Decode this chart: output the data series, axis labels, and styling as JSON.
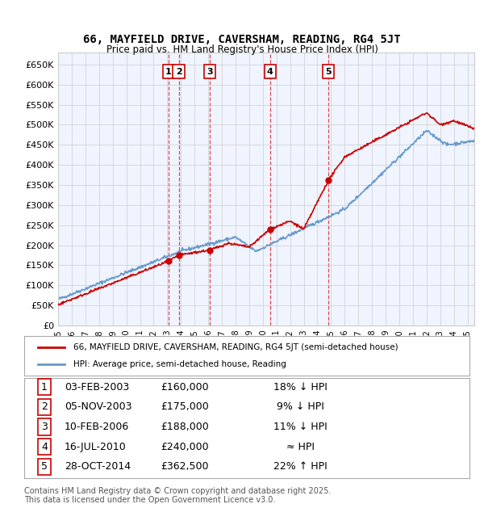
{
  "title": "66, MAYFIELD DRIVE, CAVERSHAM, READING, RG4 5JT",
  "subtitle": "Price paid vs. HM Land Registry's House Price Index (HPI)",
  "ylabel_prefix": "£",
  "xlim_start": 1995.0,
  "xlim_end": 2025.5,
  "ylim": [
    0,
    680000
  ],
  "yticks": [
    0,
    50000,
    100000,
    150000,
    200000,
    250000,
    300000,
    350000,
    400000,
    450000,
    500000,
    550000,
    600000,
    650000
  ],
  "ytick_labels": [
    "£0",
    "£50K",
    "£100K",
    "£150K",
    "£200K",
    "£250K",
    "£300K",
    "£350K",
    "£400K",
    "£450K",
    "£500K",
    "£550K",
    "£600K",
    "£650K"
  ],
  "sales": [
    {
      "num": 1,
      "date_x": 2003.09,
      "price": 160000,
      "label": "03-FEB-2003",
      "price_str": "£160,000",
      "hpi_str": "18% ↓ HPI"
    },
    {
      "num": 2,
      "date_x": 2003.84,
      "price": 175000,
      "label": "05-NOV-2003",
      "price_str": "£175,000",
      "hpi_str": "9% ↓ HPI"
    },
    {
      "num": 3,
      "date_x": 2006.11,
      "price": 188000,
      "label": "10-FEB-2006",
      "price_str": "£188,000",
      "hpi_str": "11% ↓ HPI"
    },
    {
      "num": 4,
      "date_x": 2010.54,
      "price": 240000,
      "label": "16-JUL-2010",
      "price_str": "£240,000",
      "hpi_str": "≈ HPI"
    },
    {
      "num": 5,
      "date_x": 2014.82,
      "price": 362500,
      "label": "28-OCT-2014",
      "price_str": "£362,500",
      "hpi_str": "22% ↑ HPI"
    }
  ],
  "sale_color": "#cc0000",
  "hpi_color": "#6699cc",
  "dashed_line_color": "#cc0000",
  "legend_house_label": "66, MAYFIELD DRIVE, CAVERSHAM, READING, RG4 5JT (semi-detached house)",
  "legend_hpi_label": "HPI: Average price, semi-detached house, Reading",
  "footer": "Contains HM Land Registry data © Crown copyright and database right 2025.\nThis data is licensed under the Open Government Licence v3.0.",
  "background_color": "#ffffff",
  "plot_bg_color": "#f0f4ff",
  "grid_color": "#cccccc"
}
